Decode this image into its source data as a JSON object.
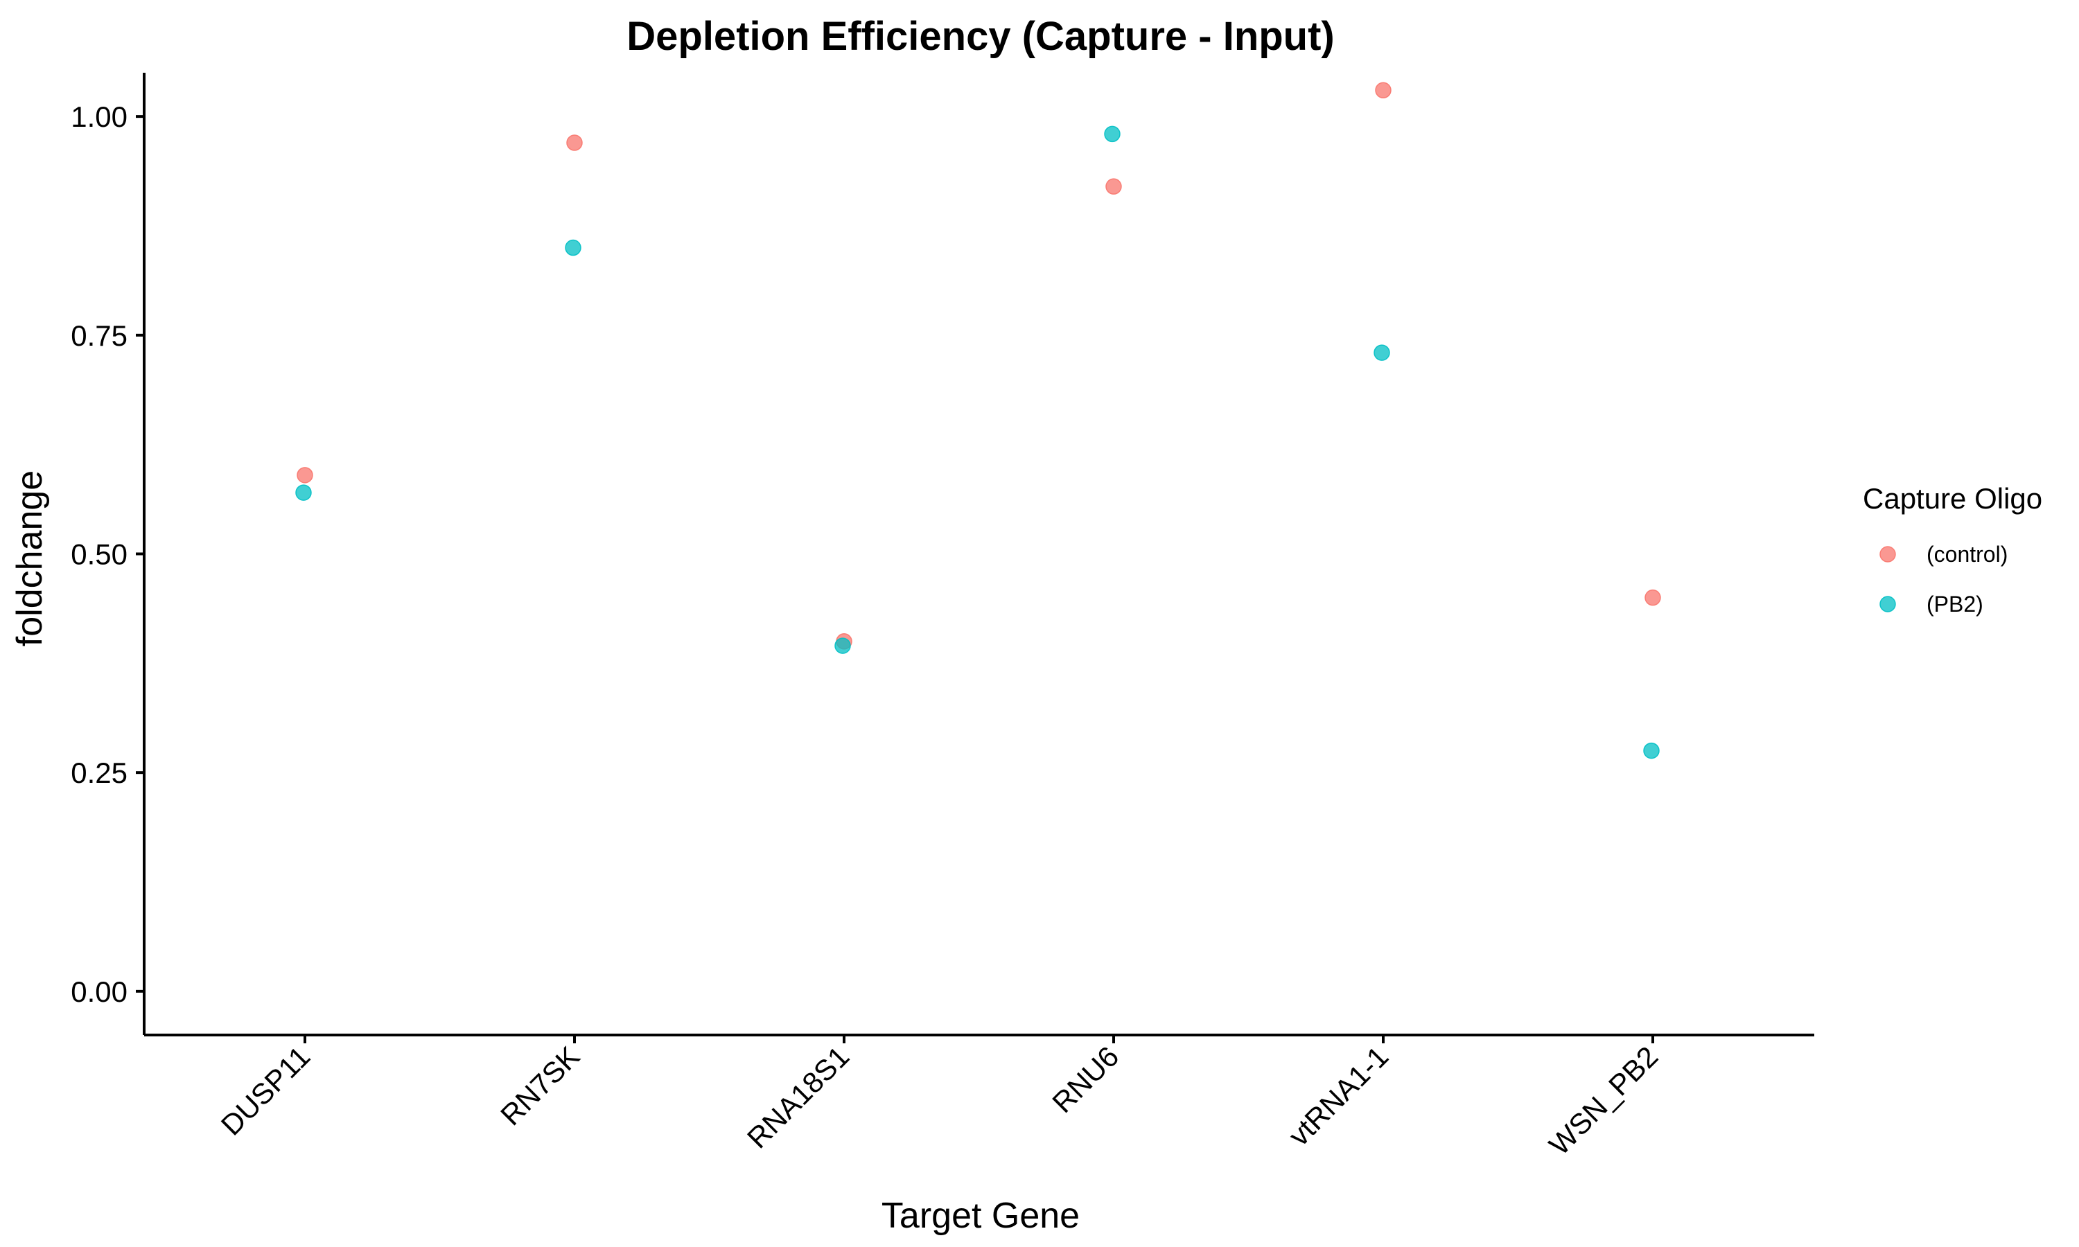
{
  "chart_data": {
    "type": "scatter",
    "title": "Depletion Efficiency (Capture - Input)",
    "xlabel": "Target Gene",
    "ylabel": "foldchange",
    "categories": [
      "DUSP11",
      "RN7SK",
      "RNA18S1",
      "RNU6",
      "vtRNA1-1",
      "WSN_PB2"
    ],
    "ylim": [
      -0.05,
      1.05
    ],
    "yticks": [
      0.0,
      0.25,
      0.5,
      0.75,
      1.0
    ],
    "ytick_labels": [
      "0.00",
      "0.25",
      "0.50",
      "0.75",
      "1.00"
    ],
    "grid": false,
    "legend": {
      "title": "Capture Oligo",
      "position": "right"
    },
    "series": [
      {
        "name": "(control)",
        "color": "#F8766D",
        "values": [
          0.59,
          0.97,
          0.4,
          0.92,
          1.03,
          0.45
        ]
      },
      {
        "name": "(PB2)",
        "color": "#00BFC4",
        "values": [
          0.57,
          0.85,
          0.395,
          0.98,
          0.73,
          0.275
        ]
      }
    ]
  }
}
